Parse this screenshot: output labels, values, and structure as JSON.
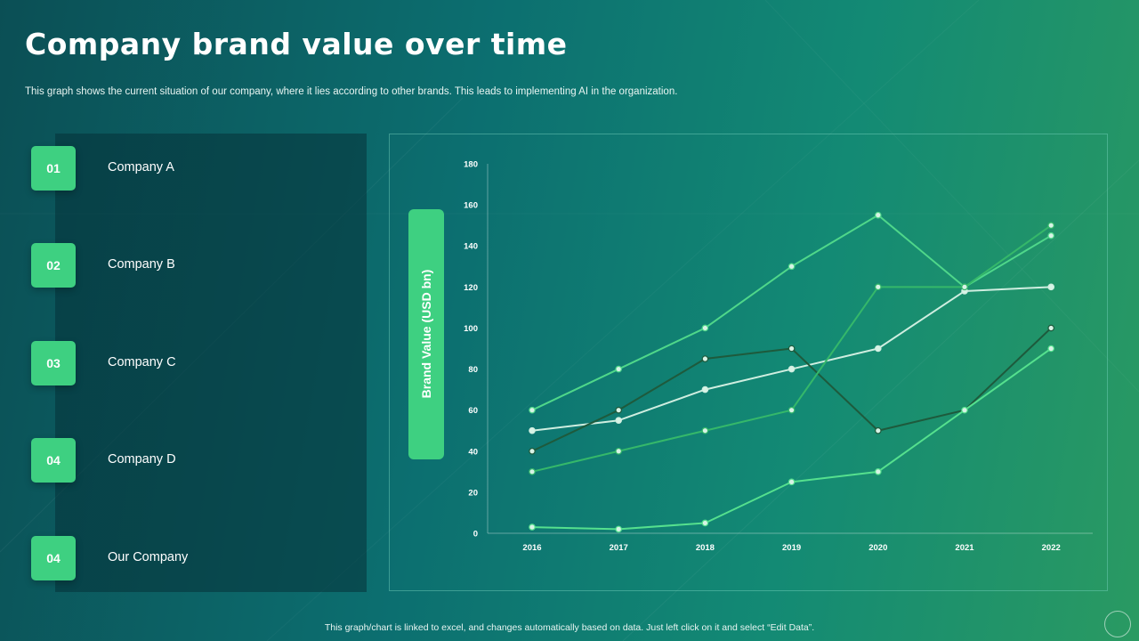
{
  "header": {
    "title": "Company brand value over time",
    "subtitle": "This graph shows the current situation of our company, where  it lies according to other brands. This leads to implementing AI in the  organization."
  },
  "legend_items": [
    {
      "number": "01",
      "label": "Company A"
    },
    {
      "number": "02",
      "label": "Company B"
    },
    {
      "number": "03",
      "label": "Company C"
    },
    {
      "number": "04",
      "label": "Company D"
    },
    {
      "number": "04",
      "label": "Our Company"
    }
  ],
  "footer": {
    "note": "This graph/chart is linked to excel, and changes automatically based on data. Just left click on it and select “Edit Data”."
  },
  "colors": {
    "accent": "#3ed081"
  },
  "chart_data": {
    "type": "line",
    "ylabel": "Brand Value (USD bn)",
    "xlabel": "",
    "ylim": [
      0,
      180
    ],
    "yticks": [
      0,
      20,
      40,
      60,
      80,
      100,
      120,
      140,
      160,
      180
    ],
    "categories": [
      "2016",
      "2017",
      "2018",
      "2019",
      "2020",
      "2021",
      "2022"
    ],
    "grid": false,
    "series": [
      {
        "color": "#4fd78a",
        "values": [
          60,
          80,
          100,
          130,
          155,
          120,
          145
        ]
      },
      {
        "color": "#cfeee0",
        "values": [
          50,
          55,
          70,
          80,
          90,
          118,
          120
        ]
      },
      {
        "color": "#1e5a3c",
        "values": [
          40,
          60,
          85,
          90,
          50,
          60,
          100
        ]
      },
      {
        "color": "#35b86a",
        "values": [
          30,
          40,
          50,
          60,
          120,
          120,
          150
        ]
      },
      {
        "color": "#55e08e",
        "values": [
          3,
          2,
          5,
          25,
          30,
          60,
          90
        ]
      }
    ]
  }
}
